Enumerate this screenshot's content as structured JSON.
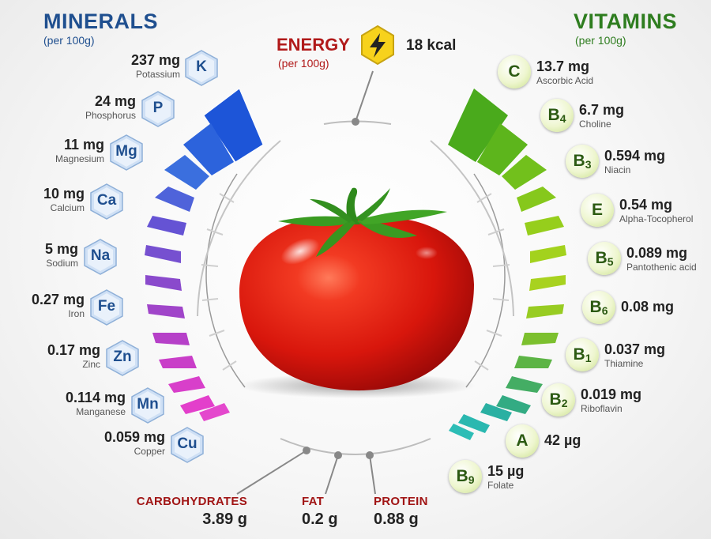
{
  "minerals": {
    "title": "MINERALS",
    "subtitle": "(per 100g)",
    "items": [
      {
        "symbol": "K",
        "amount": "237 mg",
        "name": "Potassium"
      },
      {
        "symbol": "P",
        "amount": "24 mg",
        "name": "Phosphorus"
      },
      {
        "symbol": "Mg",
        "amount": "11 mg",
        "name": "Magnesium"
      },
      {
        "symbol": "Ca",
        "amount": "10 mg",
        "name": "Calcium"
      },
      {
        "symbol": "Na",
        "amount": "5 mg",
        "name": "Sodium"
      },
      {
        "symbol": "Fe",
        "amount": "0.27 mg",
        "name": "Iron"
      },
      {
        "symbol": "Zn",
        "amount": "0.17 mg",
        "name": "Zinc"
      },
      {
        "symbol": "Mn",
        "amount": "0.114 mg",
        "name": "Manganese"
      },
      {
        "symbol": "Cu",
        "amount": "0.059 mg",
        "name": "Copper"
      }
    ]
  },
  "vitamins": {
    "title": "VITAMINS",
    "subtitle": "(per 100g)",
    "items": [
      {
        "symbol": "C",
        "sub": "",
        "amount": "13.7 mg",
        "name": "Ascorbic Acid"
      },
      {
        "symbol": "B",
        "sub": "4",
        "amount": "6.7 mg",
        "name": "Choline"
      },
      {
        "symbol": "B",
        "sub": "3",
        "amount": "0.594 mg",
        "name": "Niacin"
      },
      {
        "symbol": "E",
        "sub": "",
        "amount": "0.54 mg",
        "name": "Alpha-Tocopherol"
      },
      {
        "symbol": "B",
        "sub": "5",
        "amount": "0.089 mg",
        "name": "Pantothenic acid"
      },
      {
        "symbol": "B",
        "sub": "6",
        "amount": "0.08 mg",
        "name": ""
      },
      {
        "symbol": "B",
        "sub": "1",
        "amount": "0.037 mg",
        "name": "Thiamine"
      },
      {
        "symbol": "B",
        "sub": "2",
        "amount": "0.019 mg",
        "name": "Riboflavin"
      },
      {
        "symbol": "A",
        "sub": "",
        "amount": "42 µg",
        "name": ""
      },
      {
        "symbol": "B",
        "sub": "9",
        "amount": "15 µg",
        "name": "Folate"
      }
    ]
  },
  "energy": {
    "title": "ENERGY",
    "subtitle": "(per 100g)",
    "value": "18 kcal"
  },
  "macros": {
    "carbohydrates": {
      "label": "CARBOHYDRATES",
      "value": "3.89 g"
    },
    "fat": {
      "label": "FAT",
      "value": "0.2 g"
    },
    "protein": {
      "label": "PROTEIN",
      "value": "0.88 g"
    }
  },
  "colors": {
    "minerals_title": "#1f4f8f",
    "vitamins_title": "#2e7d1f",
    "energy_title": "#b11a1a",
    "mineral_gradient": [
      "#1a4fd6",
      "#6a3fd0",
      "#e23fc8"
    ],
    "vitamin_gradient": [
      "#3fa11a",
      "#9ccc1a",
      "#2ab8a8"
    ]
  }
}
